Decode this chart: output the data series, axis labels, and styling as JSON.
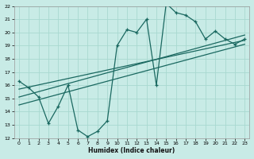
{
  "xlabel": "Humidex (Indice chaleur)",
  "ylabel": "",
  "bg_color": "#c8ebe6",
  "grid_color": "#a8d8d0",
  "line_color": "#1a6860",
  "xmin": -0.5,
  "xmax": 23.5,
  "ymin": 12,
  "ymax": 22,
  "xticks": [
    0,
    1,
    2,
    3,
    4,
    5,
    6,
    7,
    8,
    9,
    10,
    11,
    12,
    13,
    14,
    15,
    16,
    17,
    18,
    19,
    20,
    21,
    22,
    23
  ],
  "yticks": [
    12,
    13,
    14,
    15,
    16,
    17,
    18,
    19,
    20,
    21,
    22
  ],
  "main_x": [
    0,
    1,
    2,
    3,
    4,
    5,
    6,
    7,
    8,
    9,
    10,
    11,
    12,
    13,
    14,
    15,
    16,
    17,
    18,
    19,
    20,
    21,
    22,
    23
  ],
  "main_y": [
    16.3,
    15.8,
    15.1,
    13.1,
    14.4,
    16.0,
    12.6,
    12.1,
    12.5,
    13.3,
    19.0,
    20.2,
    20.0,
    21.0,
    16.0,
    22.2,
    21.5,
    21.3,
    20.8,
    19.5,
    20.1,
    19.5,
    19.1,
    19.5
  ],
  "trend1_x": [
    0,
    23
  ],
  "trend1_y": [
    15.7,
    19.4
  ],
  "trend2_x": [
    0,
    23
  ],
  "trend2_y": [
    15.1,
    19.8
  ],
  "trend3_x": [
    0,
    23
  ],
  "trend3_y": [
    14.5,
    19.1
  ]
}
